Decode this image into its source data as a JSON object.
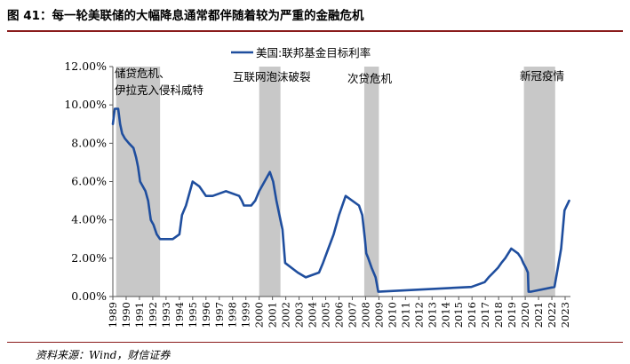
{
  "title": "图 41：每一轮美联储的大幅降息通常都伴随着较为严重的金融危机",
  "source": "资料来源：Wind，财信证券",
  "colors": {
    "series": "#1f4e9e",
    "shade": "#c8c8c8",
    "rule": "#8a1c1c"
  },
  "chart_data": {
    "type": "line",
    "title": "图 41：每一轮美联储的大幅降息通常都伴随着较为严重的金融危机",
    "xlabel": "",
    "ylabel": "",
    "xlim": [
      1989,
      2023.4
    ],
    "ylim": [
      0,
      12
    ],
    "y_ticks": [
      "0.00%",
      "2.00%",
      "4.00%",
      "6.00%",
      "8.00%",
      "10.00%",
      "12.00%"
    ],
    "y_tick_values": [
      0,
      2,
      4,
      6,
      8,
      10,
      12
    ],
    "x_ticks": [
      "1989",
      "1990",
      "1991",
      "1992",
      "1993",
      "1994",
      "1995",
      "1996",
      "1997",
      "1998",
      "1999",
      "2000",
      "2001",
      "2002",
      "2003",
      "2004",
      "2005",
      "2006",
      "2007",
      "2008",
      "2009",
      "2010",
      "2011",
      "2012",
      "2013",
      "2014",
      "2015",
      "2016",
      "2017",
      "2018",
      "2019",
      "2020",
      "2021",
      "2022",
      "2023"
    ],
    "grid": false,
    "legend": {
      "position": "top-center",
      "entries": [
        "美国:联邦基金目标利率"
      ]
    },
    "series": [
      {
        "name": "美国:联邦基金目标利率",
        "x": [
          1989.0,
          1989.15,
          1989.4,
          1989.55,
          1989.7,
          1989.9,
          1990.2,
          1990.55,
          1990.75,
          1990.9,
          1991.05,
          1991.25,
          1991.45,
          1991.65,
          1991.85,
          1992.05,
          1992.3,
          1992.55,
          1992.75,
          1993.5,
          1994.0,
          1994.2,
          1994.5,
          1995.0,
          1995.5,
          1996.0,
          1996.5,
          1997.5,
          1998.5,
          1998.7,
          1998.85,
          1999.4,
          1999.7,
          2000.0,
          2000.4,
          2000.8,
          2001.05,
          2001.3,
          2001.6,
          2001.75,
          2001.95,
          2002.9,
          2003.5,
          2004.5,
          2004.8,
          2005.2,
          2005.6,
          2006.0,
          2006.5,
          2007.5,
          2007.75,
          2007.95,
          2008.05,
          2008.2,
          2008.45,
          2008.75,
          2008.95,
          2015.95,
          2016.95,
          2017.25,
          2017.6,
          2017.95,
          2018.2,
          2018.5,
          2018.95,
          2019.45,
          2019.7,
          2019.85,
          2020.05,
          2020.2,
          2020.25,
          2020.4,
          2022.2,
          2022.45,
          2022.7,
          2022.95,
          2023.3
        ],
        "y": [
          9.0,
          9.8,
          9.8,
          9.0,
          8.5,
          8.25,
          8.0,
          7.75,
          7.25,
          6.75,
          6.0,
          5.75,
          5.5,
          5.0,
          4.0,
          3.75,
          3.25,
          3.0,
          3.0,
          3.0,
          3.25,
          4.25,
          4.75,
          6.0,
          5.75,
          5.25,
          5.25,
          5.5,
          5.25,
          5.0,
          4.75,
          4.75,
          5.0,
          5.5,
          6.0,
          6.5,
          6.0,
          5.0,
          4.0,
          3.5,
          1.75,
          1.25,
          1.0,
          1.25,
          1.75,
          2.5,
          3.25,
          4.25,
          5.25,
          4.75,
          4.25,
          3.0,
          2.25,
          2.0,
          1.5,
          1.0,
          0.25,
          0.5,
          0.75,
          1.0,
          1.25,
          1.5,
          1.75,
          2.0,
          2.5,
          2.25,
          2.0,
          1.75,
          1.5,
          1.25,
          0.25,
          0.25,
          0.5,
          1.5,
          2.5,
          4.5,
          5.0
        ]
      }
    ],
    "shaded_periods": [
      {
        "label": "储贷危机、伊拉克入侵科威特",
        "lines": [
          "储贷危机、",
          "伊拉克入侵科威特"
        ],
        "start": 1989.25,
        "end": 1992.55
      },
      {
        "label": "互联网泡沫破裂",
        "lines": [
          "互联网泡沫破裂"
        ],
        "start": 2000.0,
        "end": 2001.6
      },
      {
        "label": "次贷危机",
        "lines": [
          "次贷危机"
        ],
        "start": 2007.9,
        "end": 2009.0
      },
      {
        "label": "新冠疫情",
        "lines": [
          "新冠疫情"
        ],
        "start": 2019.9,
        "end": 2022.25
      }
    ]
  }
}
